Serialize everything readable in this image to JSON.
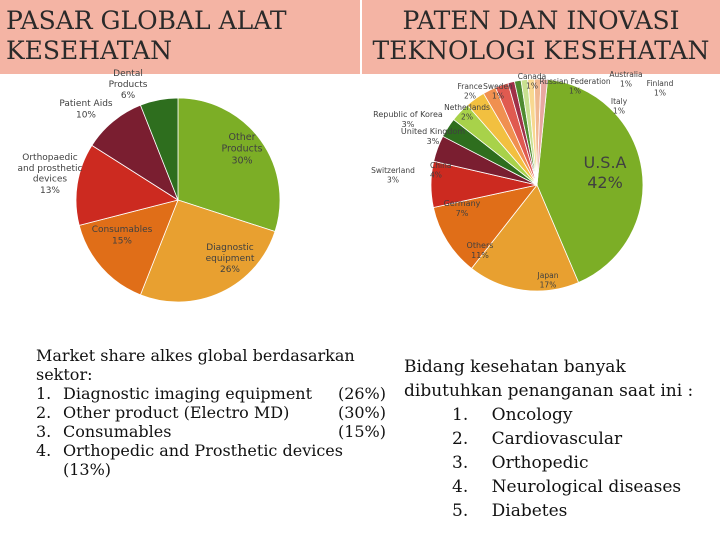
{
  "left_title": "PASAR GLOBAL ALAT\nKESEHATAN",
  "right_title": "PATEN DAN INOVASI\nTEKNOLOGI KESEHATAN",
  "left_text": {
    "intro_line1": "Market share alkes global berdasarkan",
    "intro_line2": "sektor:",
    "items": [
      {
        "num": "1.",
        "label": "Diagnostic imaging equipment",
        "pct": "(26%)"
      },
      {
        "num": "2.",
        "label": "Other product (Electro MD)",
        "pct": "(30%)"
      },
      {
        "num": "3.",
        "label": "Consumables",
        "pct": "(15%)"
      },
      {
        "num": "4.",
        "label": "Orthopedic and Prosthetic devices",
        "pct": ""
      }
    ],
    "last_cont": "(13%)"
  },
  "right_text": {
    "intro_line1": "Bidang kesehatan banyak",
    "intro_line2": "dibutuhkan penanganan saat ini :",
    "items": [
      {
        "num": "1.",
        "label": "Oncology"
      },
      {
        "num": "2.",
        "label": "Cardiovascular"
      },
      {
        "num": "3.",
        "label": "Orthopedic"
      },
      {
        "num": "4.",
        "label": "Neurological diseases"
      },
      {
        "num": "5.",
        "label": "Diabetes"
      }
    ]
  },
  "chart_data": [
    {
      "type": "pie",
      "title": "",
      "slices": [
        {
          "label": "Other Products",
          "value": 30,
          "display": "30%",
          "color": "#7cae26"
        },
        {
          "label": "Diagnostic equipment",
          "value": 26,
          "display": "26%",
          "color": "#e8a030"
        },
        {
          "label": "Consumables",
          "value": 15,
          "display": "15%",
          "color": "#e06e18"
        },
        {
          "label": "Orthopaedic and prosthetic devices",
          "value": 13,
          "display": "13%",
          "color": "#cc2a20"
        },
        {
          "label": "Patient Aids",
          "value": 10,
          "display": "10%",
          "color": "#7a1e30"
        },
        {
          "label": "Dental Products",
          "value": 6,
          "display": "6%",
          "color": "#2e6e1e"
        }
      ]
    },
    {
      "type": "pie",
      "title": "",
      "slices": [
        {
          "label": "U.S.A",
          "value": 42,
          "display": "42%",
          "color": "#7cae26"
        },
        {
          "label": "Japan",
          "value": 17,
          "display": "17%",
          "color": "#e8a030"
        },
        {
          "label": "Others",
          "value": 11,
          "display": "11%",
          "color": "#e06e18"
        },
        {
          "label": "Germany",
          "value": 7,
          "display": "7%",
          "color": "#cc2a20"
        },
        {
          "label": "China",
          "value": 4,
          "display": "4%",
          "color": "#7a1e30"
        },
        {
          "label": "Switzerland",
          "value": 3,
          "display": "3%",
          "color": "#2e6e1e"
        },
        {
          "label": "United Kingdom",
          "value": 3,
          "display": "3%",
          "color": "#a8d24a"
        },
        {
          "label": "Republic of Korea",
          "value": 3,
          "display": "3%",
          "color": "#f2c040"
        },
        {
          "label": "Netherlands",
          "value": 2,
          "display": "2%",
          "color": "#f09050"
        },
        {
          "label": "France",
          "value": 2,
          "display": "2%",
          "color": "#e05a50"
        },
        {
          "label": "Sweden",
          "value": 1,
          "display": "1%",
          "color": "#a03048"
        },
        {
          "label": "Canada",
          "value": 1,
          "display": "1%",
          "color": "#4e8a30"
        },
        {
          "label": "Russian Federation",
          "value": 1,
          "display": "1%",
          "color": "#c8e090"
        },
        {
          "label": "Australia",
          "value": 1,
          "display": "1%",
          "color": "#f8d890"
        },
        {
          "label": "Finland",
          "value": 1,
          "display": "1%",
          "color": "#f0b890"
        },
        {
          "label": "Italy",
          "value": 1,
          "display": "1%",
          "color": "#e8a8a0"
        }
      ]
    }
  ]
}
